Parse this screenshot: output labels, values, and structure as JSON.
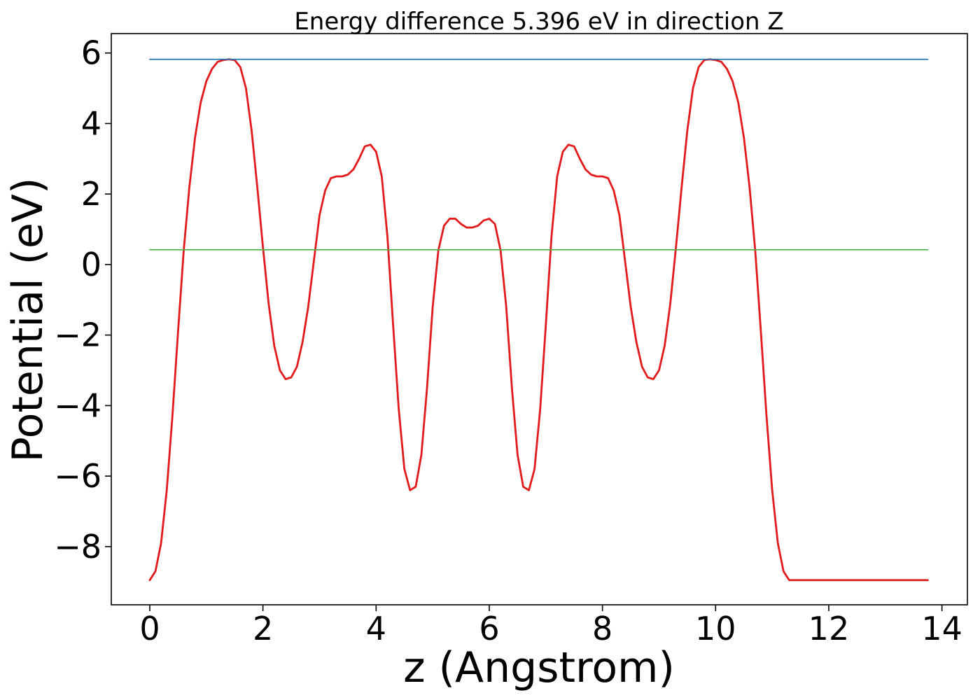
{
  "chart_data": {
    "type": "line",
    "title": "Energy difference 5.396 eV in direction Z",
    "xlabel": "z (Angstrom)",
    "ylabel": "Potential (eV)",
    "xlim": [
      -0.68,
      14.45
    ],
    "ylim": [
      -9.65,
      6.55
    ],
    "xticks": [
      0,
      2,
      4,
      6,
      8,
      10,
      12,
      14
    ],
    "xtick_labels": [
      "0",
      "2",
      "4",
      "6",
      "8",
      "10",
      "12",
      "14"
    ],
    "yticks": [
      -8,
      -6,
      -4,
      -2,
      0,
      2,
      4,
      6
    ],
    "ytick_labels": [
      "−8",
      "−6",
      "−4",
      "−2",
      "0",
      "2",
      "4",
      "6"
    ],
    "grid": false,
    "series": [
      {
        "role": "potential",
        "color": "#e31a1c",
        "x": [
          0.0,
          0.1,
          0.2,
          0.3,
          0.4,
          0.5,
          0.6,
          0.7,
          0.8,
          0.9,
          1.0,
          1.1,
          1.2,
          1.3,
          1.4,
          1.5,
          1.6,
          1.7,
          1.8,
          1.9,
          2.0,
          2.1,
          2.2,
          2.3,
          2.4,
          2.5,
          2.6,
          2.7,
          2.8,
          2.9,
          3.0,
          3.1,
          3.2,
          3.3,
          3.4,
          3.5,
          3.6,
          3.7,
          3.8,
          3.9,
          4.0,
          4.1,
          4.2,
          4.3,
          4.4,
          4.5,
          4.6,
          4.7,
          4.8,
          4.9,
          5.0,
          5.1,
          5.2,
          5.3,
          5.4,
          5.5,
          5.6,
          5.7,
          5.8,
          5.9,
          6.0,
          6.1,
          6.2,
          6.3,
          6.4,
          6.5,
          6.6,
          6.7,
          6.8,
          6.9,
          7.0,
          7.1,
          7.2,
          7.3,
          7.4,
          7.5,
          7.6,
          7.7,
          7.8,
          7.9,
          8.0,
          8.1,
          8.2,
          8.3,
          8.4,
          8.5,
          8.6,
          8.7,
          8.8,
          8.9,
          9.0,
          9.1,
          9.2,
          9.3,
          9.4,
          9.5,
          9.6,
          9.7,
          9.8,
          9.9,
          10.0,
          10.1,
          10.2,
          10.3,
          10.4,
          10.5,
          10.6,
          10.7,
          10.8,
          10.9,
          11.0,
          11.1,
          11.2,
          11.3,
          11.4,
          11.5,
          11.6,
          11.7,
          11.8,
          11.9,
          12.0,
          12.1,
          12.2,
          12.3,
          12.4,
          12.5,
          12.6,
          12.7,
          12.8,
          12.9,
          13.0,
          13.1,
          13.2,
          13.3,
          13.4,
          13.5,
          13.6,
          13.7,
          13.75
        ],
        "y": [
          -8.95,
          -8.7,
          -7.9,
          -6.4,
          -4.3,
          -1.9,
          0.4,
          2.2,
          3.6,
          4.6,
          5.2,
          5.55,
          5.75,
          5.8,
          5.82,
          5.8,
          5.6,
          5.0,
          3.8,
          2.2,
          0.5,
          -1.1,
          -2.3,
          -3.0,
          -3.25,
          -3.2,
          -2.9,
          -2.2,
          -1.2,
          0.1,
          1.4,
          2.1,
          2.45,
          2.5,
          2.5,
          2.55,
          2.7,
          3.0,
          3.35,
          3.4,
          3.2,
          2.5,
          0.8,
          -1.7,
          -4.1,
          -5.8,
          -6.4,
          -6.3,
          -5.4,
          -3.5,
          -1.2,
          0.4,
          1.1,
          1.3,
          1.3,
          1.15,
          1.05,
          1.05,
          1.1,
          1.25,
          1.3,
          1.15,
          0.4,
          -1.2,
          -3.5,
          -5.4,
          -6.3,
          -6.4,
          -5.8,
          -4.1,
          -1.7,
          0.8,
          2.5,
          3.2,
          3.4,
          3.35,
          3.0,
          2.7,
          2.55,
          2.5,
          2.5,
          2.45,
          2.1,
          1.4,
          0.1,
          -1.2,
          -2.2,
          -2.9,
          -3.2,
          -3.25,
          -3.0,
          -2.3,
          -1.1,
          0.5,
          2.2,
          3.8,
          5.0,
          5.6,
          5.8,
          5.82,
          5.8,
          5.75,
          5.55,
          5.2,
          4.6,
          3.6,
          2.2,
          0.4,
          -1.9,
          -4.3,
          -6.4,
          -7.9,
          -8.7,
          -8.95,
          -8.95,
          -8.95,
          -8.95,
          -8.95,
          -8.95,
          -8.95,
          -8.95,
          -8.95,
          -8.95,
          -8.95,
          -8.95,
          -8.95,
          -8.95,
          -8.95,
          -8.95,
          -8.95,
          -8.95,
          -8.95,
          -8.95,
          -8.95,
          -8.95,
          -8.95,
          -8.95,
          -8.95,
          -8.95
        ]
      },
      {
        "role": "vacuum-level",
        "color": "#1f77b4",
        "x": [
          0.0,
          13.75
        ],
        "y": [
          5.82,
          5.82
        ]
      },
      {
        "role": "fermi-level",
        "color": "#4daf4a",
        "x": [
          0.0,
          13.75
        ],
        "y": [
          0.42,
          0.42
        ]
      }
    ]
  }
}
